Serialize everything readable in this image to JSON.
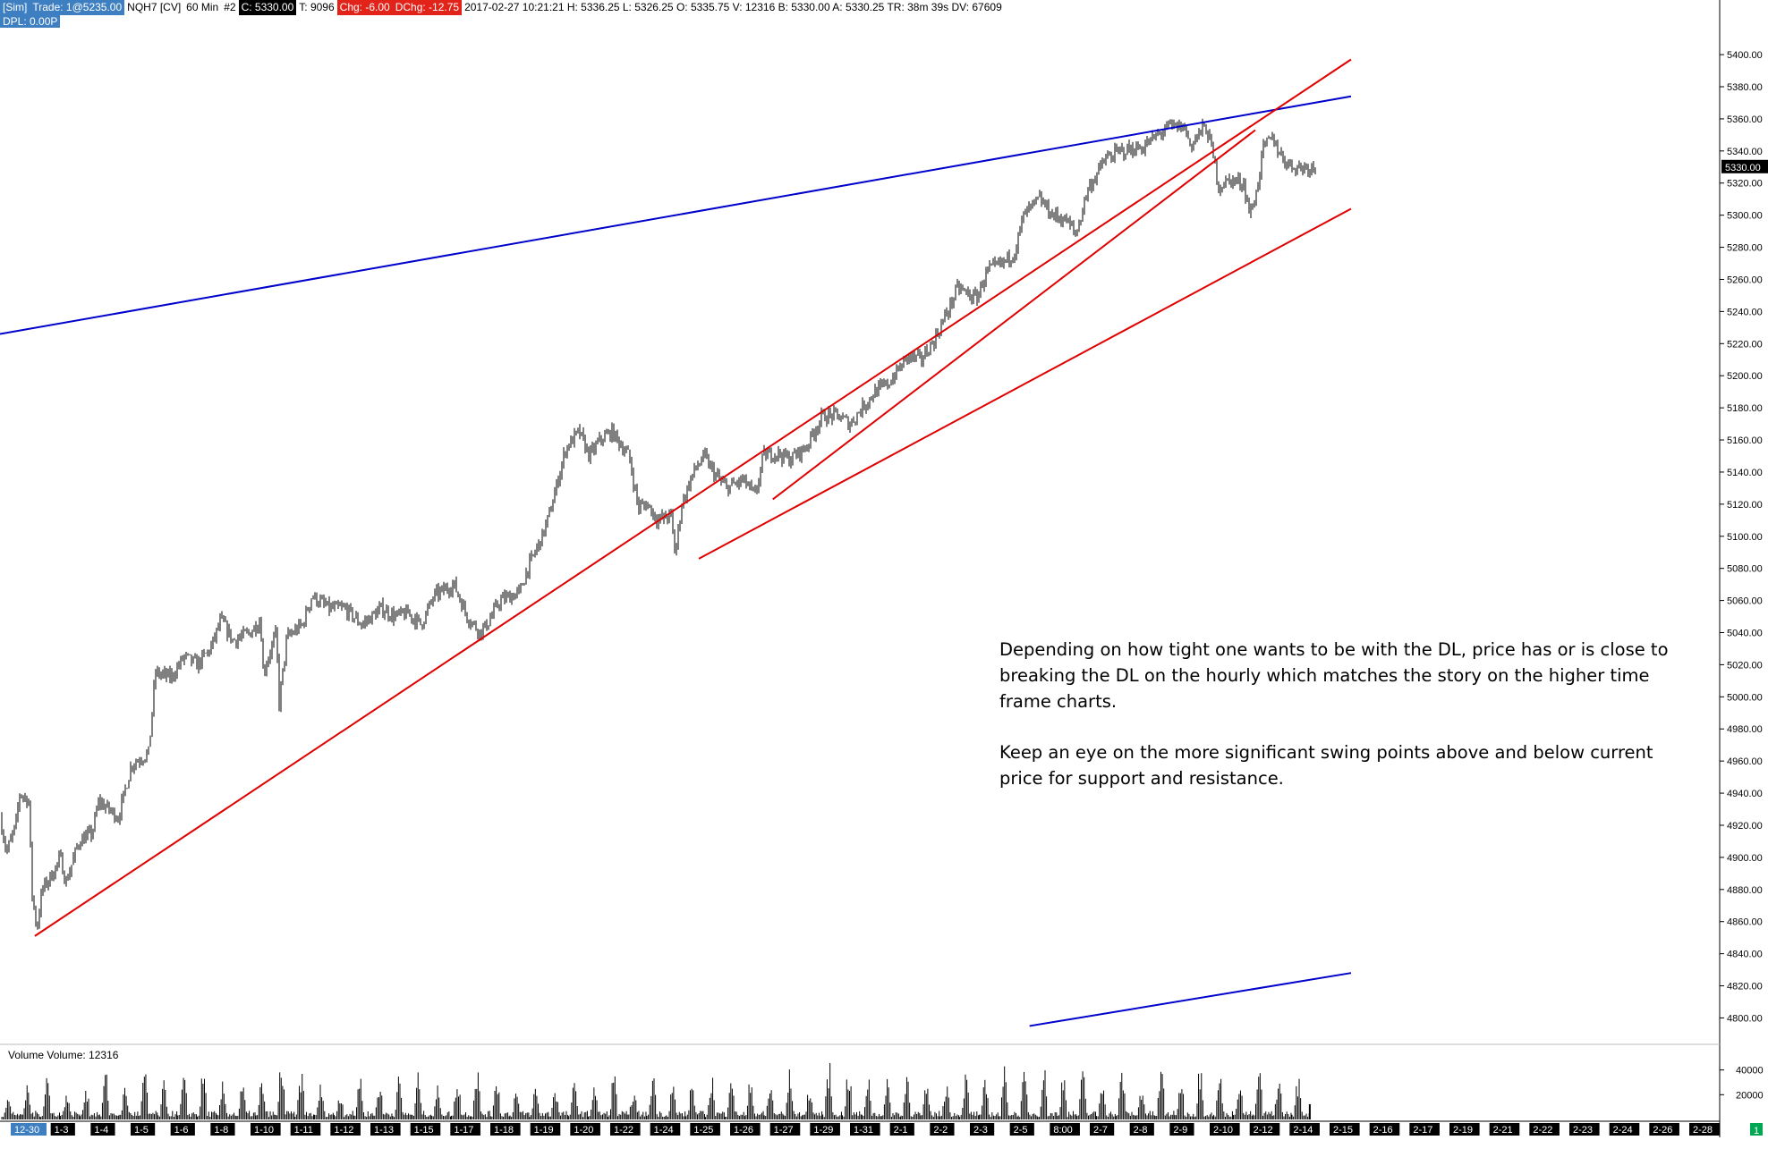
{
  "status": {
    "account": "[Sim]",
    "trade": "Trade: 1@5235.00",
    "symbol": "NQH7 [CV]",
    "interval": "60 Min",
    "chart_no": "#2",
    "close": "C: 5330.00",
    "ticks": "T: 9096",
    "chg": "Chg: -6.00",
    "dchg": "DChg: -12.75",
    "info": "2017-02-27 10:21:21 H: 5336.25 L: 5326.25 O: 5335.75 V: 12316 B: 5330.00 A: 5330.25 TR: 38m 39s DV: 67609",
    "dpl": "DPL: 0.00P"
  },
  "volume_label": "Volume  Volume: 12316",
  "annotation": {
    "paragraph1": "Depending on how tight one wants to be with the DL, price has or is close to breaking the DL on the hourly which matches the story on the higher time frame charts.",
    "paragraph2": "Keep an eye on the more significant swing points above and below current price for support and resistance."
  },
  "colors": {
    "price": "#000000",
    "upper_channel": "#0000cc",
    "trendline": "#e00000",
    "axis_label_bg": "#000000",
    "badge_green": "#00a651"
  },
  "right_badge": "1",
  "chart_data": [
    {
      "type": "line",
      "subtype": "ohlc-bars",
      "title": "",
      "xlabel": "",
      "ylabel": "",
      "ylim": [
        4788,
        5424
      ],
      "y_ticks": [
        5400,
        5380,
        5360,
        5340,
        5320,
        5300,
        5280,
        5260,
        5240,
        5220,
        5200,
        5180,
        5160,
        5140,
        5120,
        5100,
        5080,
        5060,
        5040,
        5020,
        5000,
        4980,
        4960,
        4940,
        4920,
        4900,
        4880,
        4860,
        4840,
        4820,
        4800
      ],
      "y_tick_labels": [
        "5400.00",
        "5380.00",
        "5360.00",
        "5340.00",
        "5320.00",
        "5300.00",
        "5280.00",
        "5260.00",
        "5240.00",
        "5220.00",
        "5200.00",
        "5180.00",
        "5160.00",
        "5140.00",
        "5120.00",
        "5100.00",
        "5080.00",
        "5060.00",
        "5040.00",
        "5020.00",
        "5000.00",
        "4980.00",
        "4960.00",
        "4940.00",
        "4920.00",
        "4900.00",
        "4880.00",
        "4860.00",
        "4840.00",
        "4820.00",
        "4800.00"
      ],
      "last_price_label": "5330.00",
      "last_price": 5330,
      "x_labels": [
        "12-30",
        "1-3",
        "1-4",
        "1-5",
        "1-6",
        "1-8",
        "1-10",
        "1-11",
        "1-12",
        "1-13",
        "1-15",
        "1-17",
        "1-18",
        "1-19",
        "1-20",
        "1-22",
        "1-24",
        "1-25",
        "1-26",
        "1-27",
        "1-29",
        "1-31",
        "2-1",
        "2-2",
        "2-3",
        "2-5",
        "8:00",
        "2-7",
        "2-8",
        "2-9",
        "2-10",
        "2-12",
        "2-14",
        "2-15",
        "2-16",
        "2-17",
        "2-19",
        "2-21",
        "2-22",
        "2-23",
        "2-24",
        "2-26",
        "2-28"
      ],
      "x_label_highlighted": [
        true,
        false,
        false,
        false,
        false,
        false,
        false,
        false,
        false,
        false,
        false,
        false,
        false,
        false,
        false,
        false,
        false,
        false,
        false,
        false,
        false,
        false,
        false,
        false,
        false,
        false,
        false,
        false,
        false,
        false,
        false,
        false,
        false,
        false,
        false,
        false,
        false,
        false,
        false,
        false,
        false,
        false,
        false
      ],
      "price_anchors": [
        [
          0,
          4925
        ],
        [
          0.005,
          4903
        ],
        [
          0.012,
          4920
        ],
        [
          0.015,
          4940
        ],
        [
          0.022,
          4935
        ],
        [
          0.024,
          4880
        ],
        [
          0.028,
          4855
        ],
        [
          0.032,
          4880
        ],
        [
          0.04,
          4890
        ],
        [
          0.046,
          4900
        ],
        [
          0.05,
          4884
        ],
        [
          0.06,
          4910
        ],
        [
          0.07,
          4915
        ],
        [
          0.075,
          4935
        ],
        [
          0.09,
          4925
        ],
        [
          0.1,
          4958
        ],
        [
          0.113,
          4965
        ],
        [
          0.118,
          5015
        ],
        [
          0.13,
          5012
        ],
        [
          0.14,
          5025
        ],
        [
          0.15,
          5020
        ],
        [
          0.16,
          5030
        ],
        [
          0.168,
          5048
        ],
        [
          0.177,
          5035
        ],
        [
          0.19,
          5040
        ],
        [
          0.198,
          5048
        ],
        [
          0.2,
          5015
        ],
        [
          0.21,
          5040
        ],
        [
          0.212,
          4995
        ],
        [
          0.218,
          5037
        ],
        [
          0.23,
          5045
        ],
        [
          0.237,
          5063
        ],
        [
          0.25,
          5055
        ],
        [
          0.262,
          5055
        ],
        [
          0.275,
          5045
        ],
        [
          0.29,
          5055
        ],
        [
          0.3,
          5050
        ],
        [
          0.31,
          5052
        ],
        [
          0.32,
          5045
        ],
        [
          0.33,
          5063
        ],
        [
          0.345,
          5070
        ],
        [
          0.355,
          5050
        ],
        [
          0.365,
          5040
        ],
        [
          0.37,
          5045
        ],
        [
          0.38,
          5060
        ],
        [
          0.395,
          5065
        ],
        [
          0.4,
          5078
        ],
        [
          0.412,
          5100
        ],
        [
          0.418,
          5115
        ],
        [
          0.43,
          5155
        ],
        [
          0.44,
          5165
        ],
        [
          0.448,
          5150
        ],
        [
          0.456,
          5160
        ],
        [
          0.465,
          5165
        ],
        [
          0.478,
          5150
        ],
        [
          0.485,
          5118
        ],
        [
          0.492,
          5120
        ],
        [
          0.5,
          5110
        ],
        [
          0.51,
          5113
        ],
        [
          0.513,
          5088
        ],
        [
          0.518,
          5120
        ],
        [
          0.527,
          5140
        ],
        [
          0.535,
          5150
        ],
        [
          0.542,
          5140
        ],
        [
          0.552,
          5130
        ],
        [
          0.565,
          5135
        ],
        [
          0.574,
          5125
        ],
        [
          0.58,
          5150
        ],
        [
          0.59,
          5152
        ],
        [
          0.6,
          5148
        ],
        [
          0.612,
          5155
        ],
        [
          0.625,
          5175
        ],
        [
          0.637,
          5175
        ],
        [
          0.646,
          5170
        ],
        [
          0.655,
          5180
        ],
        [
          0.665,
          5190
        ],
        [
          0.675,
          5195
        ],
        [
          0.69,
          5212
        ],
        [
          0.7,
          5210
        ],
        [
          0.71,
          5222
        ],
        [
          0.72,
          5240
        ],
        [
          0.728,
          5255
        ],
        [
          0.737,
          5250
        ],
        [
          0.742,
          5248
        ],
        [
          0.75,
          5265
        ],
        [
          0.762,
          5270
        ],
        [
          0.771,
          5277
        ],
        [
          0.778,
          5300
        ],
        [
          0.79,
          5310
        ],
        [
          0.8,
          5300
        ],
        [
          0.81,
          5297
        ],
        [
          0.818,
          5288
        ],
        [
          0.826,
          5315
        ],
        [
          0.84,
          5335
        ],
        [
          0.852,
          5340
        ],
        [
          0.868,
          5342
        ],
        [
          0.88,
          5350
        ],
        [
          0.888,
          5355
        ],
        [
          0.9,
          5355
        ],
        [
          0.905,
          5343
        ],
        [
          0.912,
          5352
        ],
        [
          0.916,
          5355
        ],
        [
          0.92,
          5345
        ],
        [
          0.926,
          5318
        ],
        [
          0.935,
          5322
        ],
        [
          0.945,
          5320
        ],
        [
          0.95,
          5300
        ],
        [
          0.955,
          5315
        ],
        [
          0.96,
          5342
        ],
        [
          0.967,
          5348
        ],
        [
          0.975,
          5335
        ],
        [
          0.983,
          5330
        ]
      ],
      "price_x_range": [
        0,
        1512
      ],
      "volume_ylim": [
        0,
        52000
      ],
      "volume_ticks": [
        40000,
        20000
      ],
      "volume_tick_labels": [
        "40000",
        "20000"
      ],
      "volume_last": 12316,
      "volume_cycle_peaks": [
        20000,
        30000,
        41000,
        24000,
        31000,
        41000,
        30000,
        41000,
        32000,
        36000,
        42000,
        31000,
        30000,
        35000,
        51000,
        43000,
        30000,
        24000,
        40000,
        33000,
        36000,
        39000,
        28000,
        38000,
        47000,
        41000,
        26000,
        29000,
        30000,
        35000,
        32000,
        40000,
        28000,
        43000,
        32000,
        33000,
        40000,
        45000,
        36000,
        31000,
        42000,
        29000,
        50000,
        44000,
        39000,
        33000,
        42000,
        30000,
        35000,
        39000,
        33000,
        44000,
        39000,
        45000,
        44000,
        42000,
        36000,
        45000,
        30000,
        45000,
        36000,
        49000,
        40000,
        38000,
        43000,
        39000,
        37000
      ],
      "lines": [
        {
          "color": "upper_channel",
          "from": [
            0,
            5226
          ],
          "to": [
            1510,
            5374
          ]
        },
        {
          "color": "trendline",
          "from": [
            40,
            4851
          ],
          "to": [
            1510,
            5397
          ]
        },
        {
          "color": "trendline",
          "from": [
            803,
            5086
          ],
          "to": [
            1510,
            5304
          ]
        },
        {
          "color": "trendline",
          "from": [
            888,
            5123
          ],
          "to": [
            1403,
            5353
          ]
        },
        {
          "color": "upper_channel",
          "from": [
            1183,
            4795
          ],
          "to": [
            1510,
            4828
          ]
        }
      ]
    }
  ]
}
